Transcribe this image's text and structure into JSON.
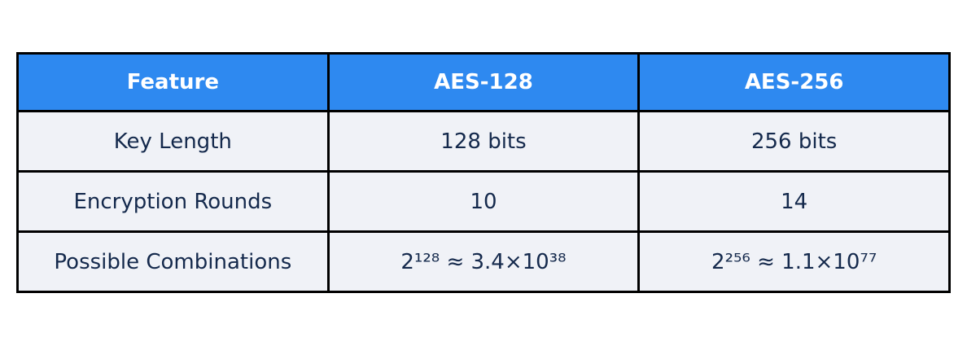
{
  "chart_data": {
    "type": "table",
    "title": "",
    "columns": [
      "Feature",
      "AES-128",
      "AES-256"
    ],
    "rows": [
      [
        "Key Length",
        "128 bits",
        "256 bits"
      ],
      [
        "Encryption Rounds",
        "10",
        "14"
      ],
      [
        "Possible Combinations",
        "2¹²⁸ ≈ 3.4×10³⁸",
        "2²⁵⁶ ≈ 1.1×10⁷⁷"
      ]
    ]
  },
  "table": {
    "header": {
      "feature": "Feature",
      "aes128": "AES-128",
      "aes256": "AES-256"
    },
    "rows": {
      "key_length": {
        "label": "Key Length",
        "aes128": "128 bits",
        "aes256": "256 bits"
      },
      "rounds": {
        "label": "Encryption Rounds",
        "aes128": "10",
        "aes256": "14"
      },
      "combinations": {
        "label": "Possible Combinations",
        "aes128": "2¹²⁸ ≈ 3.4×10³⁸",
        "aes256": "2²⁵⁶ ≈ 1.1×10⁷⁷"
      }
    },
    "colors": {
      "header_bg": "#2E89F0",
      "header_text": "#FFFFFF",
      "row_bg": "#F0F2F7",
      "body_text": "#14294C",
      "border": "#000000"
    }
  }
}
